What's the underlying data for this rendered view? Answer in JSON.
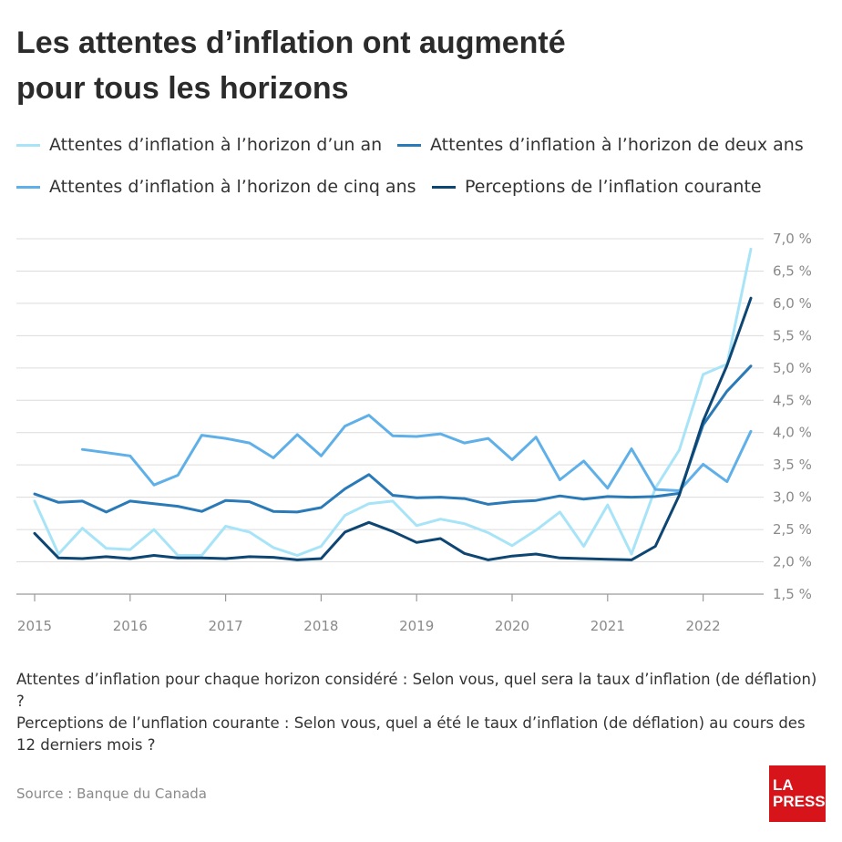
{
  "title_line1": "Les attentes d’inflation ont augmenté",
  "title_line2": "pour tous les horizons",
  "notes": {
    "line1": "Attentes d’inflation pour chaque horizon considéré : Selon vous, quel sera la taux d’inflation (de déflation) ?",
    "line2": "Perceptions de l’unflation courante : Selon vous, quel a été le taux d’inflation (de déflation) au cours des 12 derniers mois ?"
  },
  "source": "Source : Banque du Canada",
  "logo": {
    "line1": "LA",
    "line2": "PRESSE"
  },
  "colors": {
    "one_year": "#a8e4f7",
    "two_year": "#2a7ab8",
    "five_year": "#5fb0e8",
    "current": "#0d4673",
    "grid": "#dcdcdc"
  },
  "chart_data": {
    "type": "line",
    "title": "",
    "xlabel": "",
    "ylabel": "",
    "ylim": [
      1.5,
      7.0
    ],
    "xlim": [
      2015.0,
      2022.75
    ],
    "y_ticks": [
      {
        "value": 1.5,
        "label": "1,5 %"
      },
      {
        "value": 2.0,
        "label": "2,0 %"
      },
      {
        "value": 2.5,
        "label": "2,5 %"
      },
      {
        "value": 3.0,
        "label": "3,0 %"
      },
      {
        "value": 3.5,
        "label": "3,5 %"
      },
      {
        "value": 4.0,
        "label": "4,0 %"
      },
      {
        "value": 4.5,
        "label": "4,5 %"
      },
      {
        "value": 5.0,
        "label": "5,0 %"
      },
      {
        "value": 5.5,
        "label": "5,5 %"
      },
      {
        "value": 6.0,
        "label": "6,0 %"
      },
      {
        "value": 6.5,
        "label": "6,5 %"
      },
      {
        "value": 7.0,
        "label": "7,0 %"
      }
    ],
    "x_ticks": [
      {
        "value": 2015,
        "label": "2015"
      },
      {
        "value": 2016,
        "label": "2016"
      },
      {
        "value": 2017,
        "label": "2017"
      },
      {
        "value": 2018,
        "label": "2018"
      },
      {
        "value": 2019,
        "label": "2019"
      },
      {
        "value": 2020,
        "label": "2020"
      },
      {
        "value": 2021,
        "label": "2021"
      },
      {
        "value": 2022,
        "label": "2022"
      }
    ],
    "grid": true,
    "legend_position": "top",
    "x": [
      2015.0,
      2015.25,
      2015.5,
      2015.75,
      2016.0,
      2016.25,
      2016.5,
      2016.75,
      2017.0,
      2017.25,
      2017.5,
      2017.75,
      2018.0,
      2018.25,
      2018.5,
      2018.75,
      2019.0,
      2019.25,
      2019.5,
      2019.75,
      2020.0,
      2020.25,
      2020.5,
      2020.75,
      2021.0,
      2021.25,
      2021.5,
      2021.75,
      2022.0,
      2022.25,
      2022.5
    ],
    "series": [
      {
        "key": "one_year",
        "name": "Attentes d’inflation à l’horizon d’un an",
        "values": [
          2.94,
          2.12,
          2.52,
          2.21,
          2.19,
          2.5,
          2.1,
          2.1,
          2.55,
          2.46,
          2.22,
          2.1,
          2.24,
          2.72,
          2.9,
          2.94,
          2.56,
          2.66,
          2.59,
          2.45,
          2.25,
          2.49,
          2.77,
          2.24,
          2.88,
          2.12,
          3.14,
          3.73,
          4.9,
          5.06,
          6.84
        ]
      },
      {
        "key": "two_year",
        "name": "Attentes d’inflation à l’horizon de deux ans",
        "values": [
          3.05,
          2.92,
          2.94,
          2.77,
          2.94,
          2.9,
          2.86,
          2.78,
          2.95,
          2.93,
          2.78,
          2.77,
          2.84,
          3.13,
          3.35,
          3.03,
          2.99,
          3.0,
          2.98,
          2.89,
          2.93,
          2.95,
          3.02,
          2.97,
          3.01,
          3.0,
          3.01,
          3.06,
          4.12,
          4.64,
          5.03
        ]
      },
      {
        "key": "five_year",
        "name": "Attentes d’inflation à l’horizon de cinq ans",
        "values": [
          null,
          null,
          3.74,
          3.69,
          3.64,
          3.19,
          3.34,
          3.96,
          3.91,
          3.84,
          3.61,
          3.97,
          3.64,
          4.1,
          4.27,
          3.95,
          3.94,
          3.98,
          3.84,
          3.91,
          3.58,
          3.93,
          3.27,
          3.56,
          3.14,
          3.75,
          3.12,
          3.1,
          3.51,
          3.24,
          4.02
        ]
      },
      {
        "key": "current",
        "name": "Perceptions de l’inflation courante",
        "values": [
          2.44,
          2.06,
          2.05,
          2.08,
          2.05,
          2.1,
          2.06,
          2.06,
          2.05,
          2.08,
          2.07,
          2.03,
          2.05,
          2.46,
          2.61,
          2.47,
          2.3,
          2.36,
          2.13,
          2.03,
          2.09,
          2.12,
          2.06,
          2.05,
          2.04,
          2.03,
          2.24,
          3.03,
          4.18,
          5.04,
          6.08
        ]
      }
    ]
  }
}
